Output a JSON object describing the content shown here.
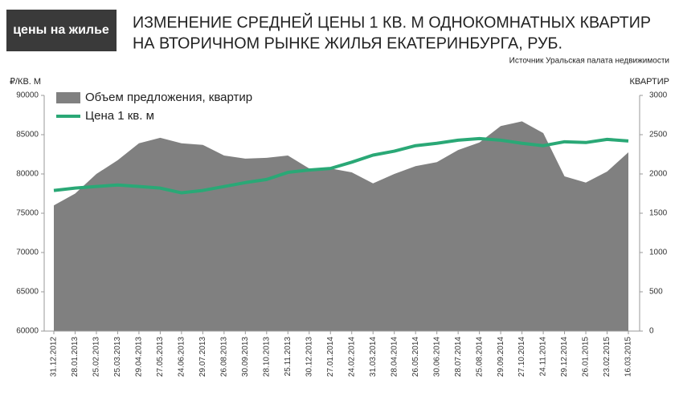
{
  "badge": "цены на жилье",
  "chart_data": {
    "type": "combo",
    "title": [
      "ИЗМЕНЕНИЕ СРЕДНЕЙ ЦЕНЫ 1 КВ. М ОДНОКОМНАТНЫХ КВАРТИР",
      "НА ВТОРИЧНОМ РЫНКЕ ЖИЛЬЯ ЕКАТЕРИНБУРГА, РУБ."
    ],
    "source": "Источник Уральская палата недвижимости",
    "y_label": "₽/КВ. М",
    "y2_label": "КВАРТИР",
    "categories": [
      "31.12.2012",
      "28.01.2013",
      "25.02.2013",
      "25.03.2013",
      "29.04.2013",
      "27.05.2013",
      "24.06.2013",
      "29.07.2013",
      "26.08.2013",
      "30.09.2013",
      "28.10.2013",
      "25.11.2013",
      "30.12.2013",
      "27.01.2014",
      "24.02.2014",
      "31.03.2014",
      "28.04.2014",
      "26.05.2014",
      "30.06.2014",
      "28.07.2014",
      "25.08.2014",
      "29.09.2014",
      "27.10.2014",
      "24.11.2014",
      "29.12.2014",
      "26.01.2015",
      "23.02.2015",
      "16.03.2015"
    ],
    "series": [
      {
        "name": "Объем предложения, квартир",
        "type": "area",
        "axis": "y2",
        "color": "#808080",
        "values": [
          1600,
          1750,
          2000,
          2175,
          2390,
          2460,
          2390,
          2370,
          2235,
          2195,
          2205,
          2235,
          2070,
          2070,
          2020,
          1880,
          2000,
          2100,
          2150,
          2305,
          2400,
          2610,
          2670,
          2520,
          1970,
          1890,
          2030,
          2275
        ]
      },
      {
        "name": "Цена 1 кв. м",
        "type": "line",
        "axis": "y",
        "color": "#2aa876",
        "values": [
          77900,
          78200,
          78400,
          78600,
          78400,
          78200,
          77600,
          77900,
          78400,
          78900,
          79300,
          80200,
          80500,
          80700,
          81500,
          82400,
          82900,
          83600,
          83900,
          84300,
          84500,
          84300,
          83900,
          83600,
          84100,
          84000,
          84400,
          84200
        ]
      }
    ],
    "ylim": [
      60000,
      90000
    ],
    "yticks": [
      60000,
      65000,
      70000,
      75000,
      80000,
      85000,
      90000
    ],
    "y2lim": [
      0,
      3000
    ],
    "y2ticks": [
      0,
      500,
      1000,
      1500,
      2000,
      2500,
      3000
    ]
  }
}
